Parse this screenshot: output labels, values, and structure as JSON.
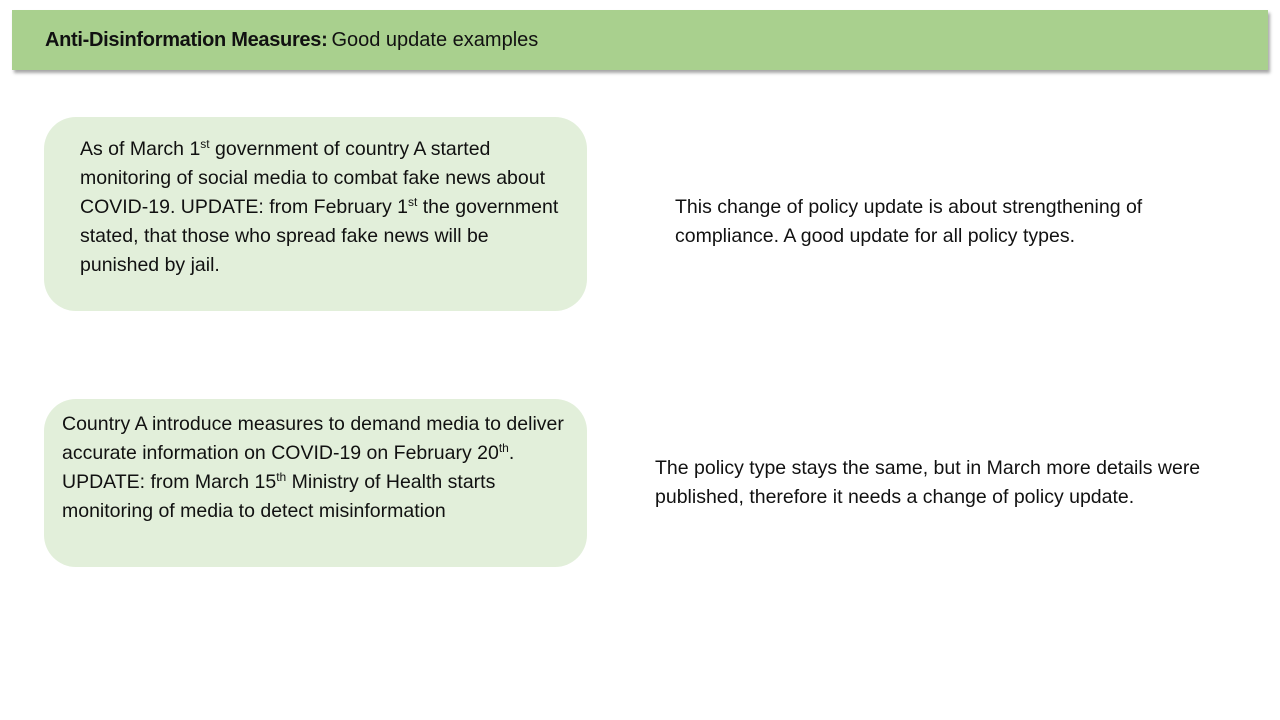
{
  "header": {
    "title_bold": "Anti-Disinformation Measures:",
    "title_rest": "Good update examples"
  },
  "examples": [
    {
      "box": {
        "t1": "As of March 1",
        "s1": "st",
        "t2": " government of country A started monitoring of social media to combat fake news about COVID-19. UPDATE: from February 1",
        "s2": "st",
        "t3": " the government stated, that those who spread fake news will be punished by jail."
      },
      "note": "This change of policy update is about strengthening of compliance. A good update for all policy types."
    },
    {
      "box": {
        "t1": "Country A introduce measures to demand media to deliver accurate information on COVID-19 on February 20",
        "s1": "th",
        "t2": ". UPDATE: from March 15",
        "s2": "th",
        "t3": " Ministry of Health starts monitoring of media to detect misinformation"
      },
      "note": "The policy type stays the same, but in March more details were published, therefore it needs a change of policy update."
    }
  ]
}
